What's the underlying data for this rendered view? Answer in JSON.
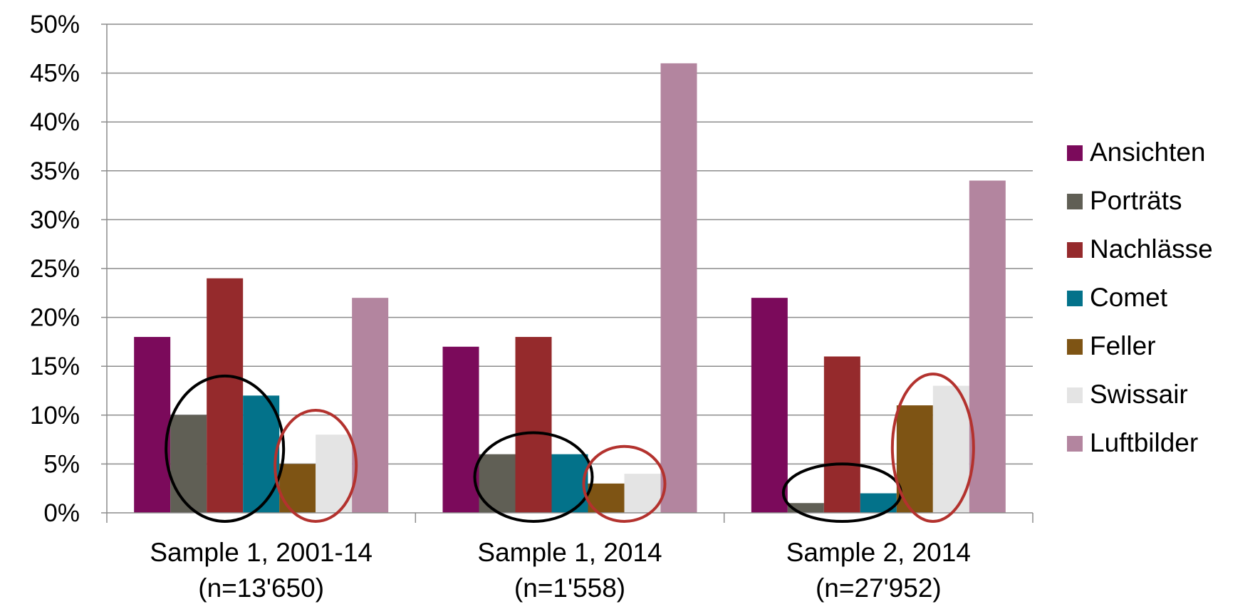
{
  "chart_data": {
    "type": "bar",
    "categories": [
      [
        "Sample 1, 2001-14",
        "(n=13'650)"
      ],
      [
        "Sample 1, 2014",
        "(n=1'558)"
      ],
      [
        "Sample 2, 2014",
        "(n=27'952)"
      ]
    ],
    "series": [
      {
        "name": "Ansichten",
        "color": "#7b0a5b",
        "values": [
          18,
          17,
          22
        ]
      },
      {
        "name": "Porträts",
        "color": "#605f55",
        "values": [
          10,
          6,
          1
        ]
      },
      {
        "name": "Nachlässe",
        "color": "#952a2c",
        "values": [
          24,
          18,
          16
        ]
      },
      {
        "name": "Comet",
        "color": "#03728a",
        "values": [
          12,
          6,
          2
        ]
      },
      {
        "name": "Feller",
        "color": "#7e5414",
        "values": [
          5,
          3,
          11
        ]
      },
      {
        "name": "Swissair",
        "color": "#e4e4e4",
        "values": [
          8,
          4,
          13
        ]
      },
      {
        "name": "Luftbilder",
        "color": "#b3859f",
        "values": [
          22,
          46,
          34
        ]
      }
    ],
    "y_ticks": [
      "0%",
      "5%",
      "10%",
      "15%",
      "20%",
      "25%",
      "30%",
      "35%",
      "40%",
      "45%",
      "50%"
    ],
    "ylim": [
      0,
      50
    ],
    "grid": true,
    "legend_position": "right",
    "annotations": [
      {
        "shape": "ellipse",
        "color": "#000000",
        "category": 0,
        "series_from": 1,
        "series_to": 3,
        "y_range": [
          0,
          14
        ]
      },
      {
        "shape": "ellipse",
        "color": "#b3322e",
        "category": 0,
        "series_from": 4,
        "series_to": 5,
        "y_range": [
          0,
          10.5
        ]
      },
      {
        "shape": "ellipse",
        "color": "#000000",
        "category": 1,
        "series_from": 1,
        "series_to": 3,
        "y_range": [
          0,
          8.2
        ]
      },
      {
        "shape": "ellipse",
        "color": "#b3322e",
        "category": 1,
        "series_from": 4,
        "series_to": 5,
        "y_range": [
          0,
          6.8
        ]
      },
      {
        "shape": "ellipse",
        "color": "#000000",
        "category": 2,
        "series_from": 1,
        "series_to": 3,
        "y_range": [
          0,
          5
        ]
      },
      {
        "shape": "ellipse",
        "color": "#b3322e",
        "category": 2,
        "series_from": 4,
        "series_to": 5,
        "y_range": [
          0,
          14.2
        ]
      }
    ]
  }
}
